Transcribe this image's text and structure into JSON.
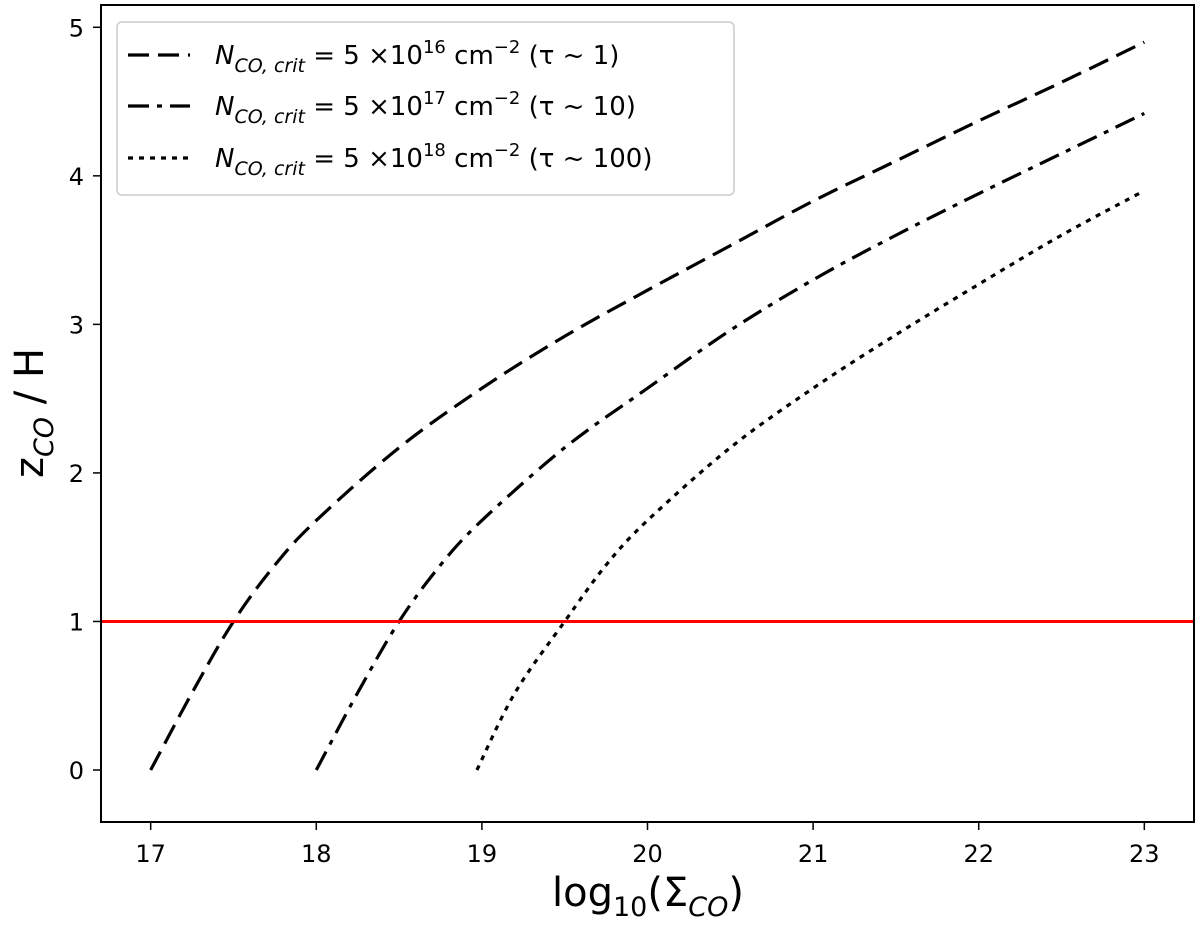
{
  "chart_data": {
    "type": "line",
    "xlabel": "log10(ΣCO)",
    "xlabel_parts": {
      "base": "log",
      "base_sub": "10",
      "open": "(Σ",
      "sigma_sub": "CO",
      "close": ")"
    },
    "ylabel": "zCO / H",
    "ylabel_parts": {
      "z": "z",
      "z_sub": "CO",
      "rest": " / H"
    },
    "xlim": [
      16.7,
      23.3
    ],
    "ylim": [
      -0.35,
      5.15
    ],
    "xticks": [
      17,
      18,
      19,
      20,
      21,
      22,
      23
    ],
    "yticks": [
      0,
      1,
      2,
      3,
      4,
      5
    ],
    "grid": false,
    "legend_position": "top-left",
    "reference_line": {
      "y": 1,
      "color": "#ff0000",
      "label": ""
    },
    "series": [
      {
        "name": "NCO,crit = 5 ×10^16 cm^-2 (τ ~ 1)",
        "legend": {
          "N": "N",
          "N_sub": "CO, crit",
          "eq": " = 5 ×10",
          "exp": "16",
          "unit": " cm",
          "unit_exp": "−2",
          "tau": " (τ ~ 1)"
        },
        "style": "dashed",
        "color": "#000000",
        "x": [
          17.0,
          17.25,
          17.5,
          17.75,
          18.0,
          18.5,
          19.0,
          19.5,
          20.0,
          20.5,
          21.0,
          21.5,
          22.0,
          22.5,
          23.0
        ],
        "y": [
          0.0,
          0.52,
          1.0,
          1.38,
          1.68,
          2.17,
          2.57,
          2.92,
          3.23,
          3.53,
          3.83,
          4.1,
          4.37,
          4.63,
          4.9
        ]
      },
      {
        "name": "NCO,crit = 5 ×10^17 cm^-2 (τ ~ 10)",
        "legend": {
          "N": "N",
          "N_sub": "CO, crit",
          "eq": " = 5 ×10",
          "exp": "17",
          "unit": " cm",
          "unit_exp": "−2",
          "tau": " (τ ~ 10)"
        },
        "style": "dashdot",
        "color": "#000000",
        "x": [
          18.0,
          18.25,
          18.5,
          18.75,
          19.0,
          19.5,
          20.0,
          20.5,
          21.0,
          21.5,
          22.0,
          22.5,
          23.0
        ],
        "y": [
          0.0,
          0.52,
          1.0,
          1.38,
          1.68,
          2.17,
          2.57,
          2.96,
          3.3,
          3.6,
          3.88,
          4.15,
          4.42
        ]
      },
      {
        "name": "NCO,crit = 5 ×10^18 cm^-2 (τ ~ 100)",
        "legend": {
          "N": "N",
          "N_sub": "CO, crit",
          "eq": " = 5 ×10",
          "exp": "18",
          "unit": " cm",
          "unit_exp": "−2",
          "tau": " (τ ~ 100)"
        },
        "style": "dotted",
        "color": "#000000",
        "x": [
          18.97,
          19.2,
          19.5,
          19.75,
          20.0,
          20.5,
          21.0,
          21.5,
          22.0,
          22.5,
          23.0
        ],
        "y": [
          0.0,
          0.52,
          1.0,
          1.38,
          1.68,
          2.17,
          2.57,
          2.93,
          3.27,
          3.6,
          3.9
        ]
      }
    ]
  }
}
